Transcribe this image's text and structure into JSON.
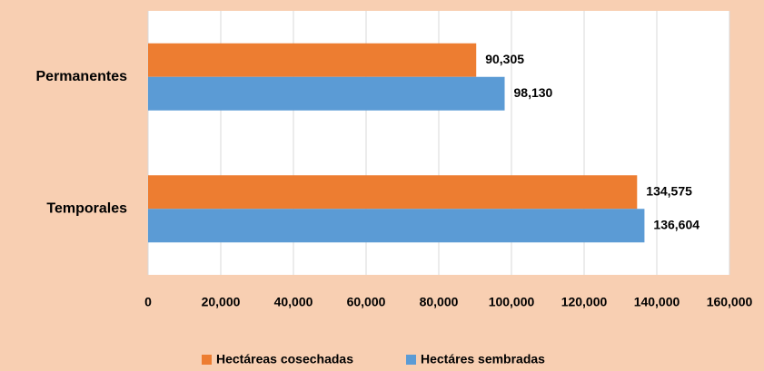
{
  "chart_data": {
    "type": "barh",
    "categories": [
      "Permanentes",
      "Temporales"
    ],
    "series": [
      {
        "name": "Hectáreas cosechadas",
        "color": "#ed7d31",
        "values": [
          90305,
          134575
        ],
        "value_labels": [
          "90,305",
          "134,575"
        ]
      },
      {
        "name": "Hectáres sembradas",
        "color": "#5b9bd5",
        "values": [
          98130,
          136604
        ],
        "value_labels": [
          "98,130",
          "136,604"
        ]
      }
    ],
    "xlim": [
      0,
      160000
    ],
    "xticks": [
      0,
      {
        "value": 20000,
        "label": "20,000"
      },
      {
        "value": 40000,
        "label": "40,000"
      },
      {
        "value": 60000,
        "label": "60,000"
      },
      {
        "value": 80000,
        "label": "80,000"
      },
      {
        "value": 100000,
        "label": "100,000"
      },
      {
        "value": 120000,
        "label": "120,000"
      },
      {
        "value": 140000,
        "label": "140,000"
      },
      {
        "value": 160000,
        "label": "160,000"
      }
    ],
    "grid": true,
    "legend": "bottom"
  }
}
